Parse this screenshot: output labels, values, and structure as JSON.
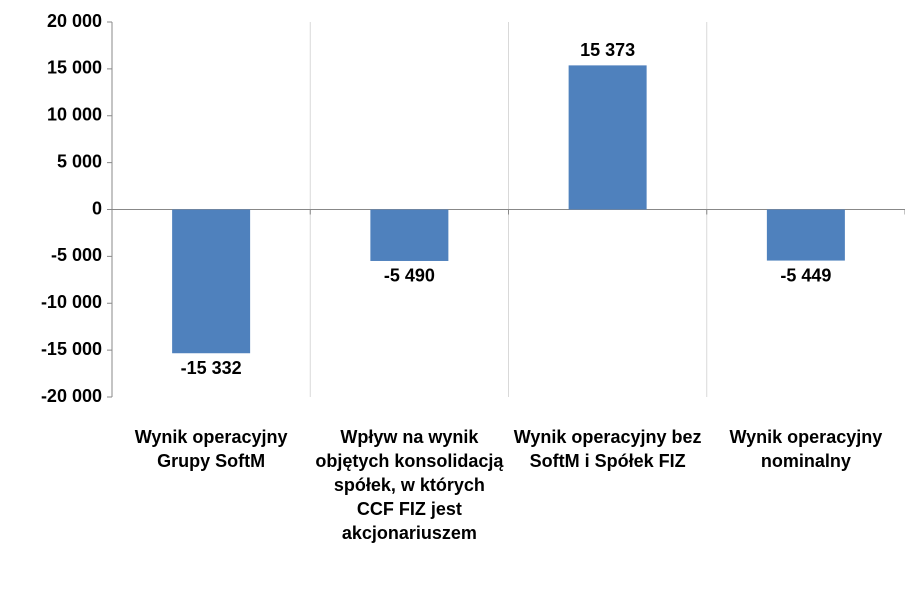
{
  "chart_data": {
    "type": "bar",
    "categories": [
      "Wynik operacyjny Grupy SoftM",
      "Wpływ na wynik objętych konsolidacją spółek, w których CCF FIZ jest akcjonariuszem",
      "Wynik operacyjny bez SoftM i Spółek FIZ",
      "Wynik operacyjny nominalny"
    ],
    "values": [
      -15332,
      -5490,
      15373,
      -5449
    ],
    "value_labels": [
      "-15 332",
      "-5 490",
      "15 373",
      "-5 449"
    ],
    "color": "#4f81bd",
    "ylim": [
      -20000,
      20000
    ],
    "yticks": [
      {
        "value": -20000,
        "label": "-20 000"
      },
      {
        "value": -15000,
        "label": "-15 000"
      },
      {
        "value": -10000,
        "label": "-10 000"
      },
      {
        "value": -5000,
        "label": "-5 000"
      },
      0,
      {
        "value": 5000,
        "label": "5 000"
      },
      {
        "value": 10000,
        "label": "10 000"
      },
      {
        "value": 15000,
        "label": "15 000"
      },
      {
        "value": 20000,
        "label": "20 000"
      }
    ],
    "grid": false
  }
}
